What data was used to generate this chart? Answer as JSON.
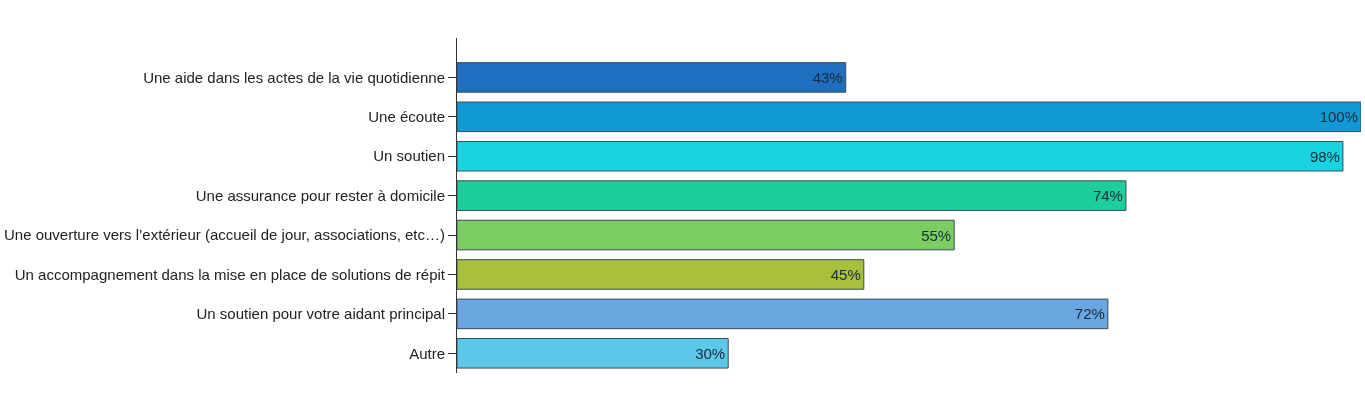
{
  "chart_data": {
    "type": "bar",
    "orientation": "horizontal",
    "categories": [
      "Une aide dans les actes de la vie quotidienne",
      "Une écoute",
      "Un soutien",
      "Une assurance pour rester à domicile",
      "Une ouverture vers l’extérieur (accueil de jour, associations, etc…)",
      "Un accompagnement dans la mise en place de solutions de répit",
      "Un soutien pour votre aidant principal",
      "Autre"
    ],
    "values": [
      43,
      100,
      98,
      74,
      55,
      45,
      72,
      30
    ],
    "value_labels": [
      "43%",
      "100%",
      "98%",
      "74%",
      "55%",
      "45%",
      "72%",
      "30%"
    ],
    "colors": [
      "#1f6fc0",
      "#0f9ad6",
      "#19d3e0",
      "#1ccf9a",
      "#7ccd62",
      "#a8c03c",
      "#6aa6e0",
      "#5ac8e8"
    ],
    "legend": false,
    "tick_labels": "y"
  }
}
